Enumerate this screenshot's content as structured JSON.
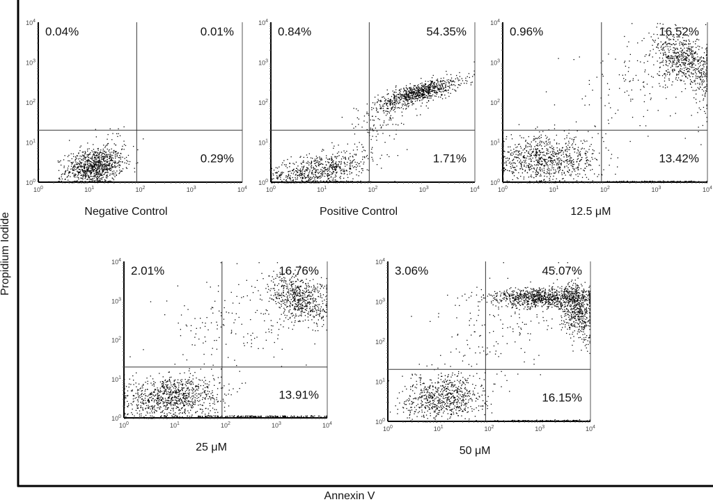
{
  "chart_data": {
    "type": "scatter",
    "xlabel": "Annexin V",
    "ylabel": "Propidium Iodide",
    "xscale": "log",
    "yscale": "log",
    "xlim": [
      1,
      10000
    ],
    "ylim": [
      1,
      10000
    ],
    "tick_labels": [
      "10^0",
      "10^1",
      "10^2",
      "10^3",
      "10^4"
    ],
    "gates": {
      "x": 85,
      "y": 20
    },
    "grid": false,
    "panels": [
      {
        "title": "Negative Control",
        "quadrants": {
          "upper_left": "0.04%",
          "upper_right": "0.01%",
          "lower_right": "0.29%"
        }
      },
      {
        "title": "Positive Control",
        "quadrants": {
          "upper_left": "0.84%",
          "upper_right": "54.35%",
          "lower_right": "1.71%"
        }
      },
      {
        "title": "12.5 μM",
        "quadrants": {
          "upper_left": "0.96%",
          "upper_right": "16.52%",
          "lower_right": "13.42%"
        }
      },
      {
        "title": "25 μM",
        "quadrants": {
          "upper_left": "2.01%",
          "upper_right": "16.76%",
          "lower_right": "13.91%"
        }
      },
      {
        "title": "50 μM",
        "quadrants": {
          "upper_left": "3.06%",
          "upper_right": "45.07%",
          "lower_right": "16.15%"
        }
      }
    ],
    "colors": {
      "points": "#000000",
      "axes": "#000000",
      "gates": "#333333"
    }
  }
}
